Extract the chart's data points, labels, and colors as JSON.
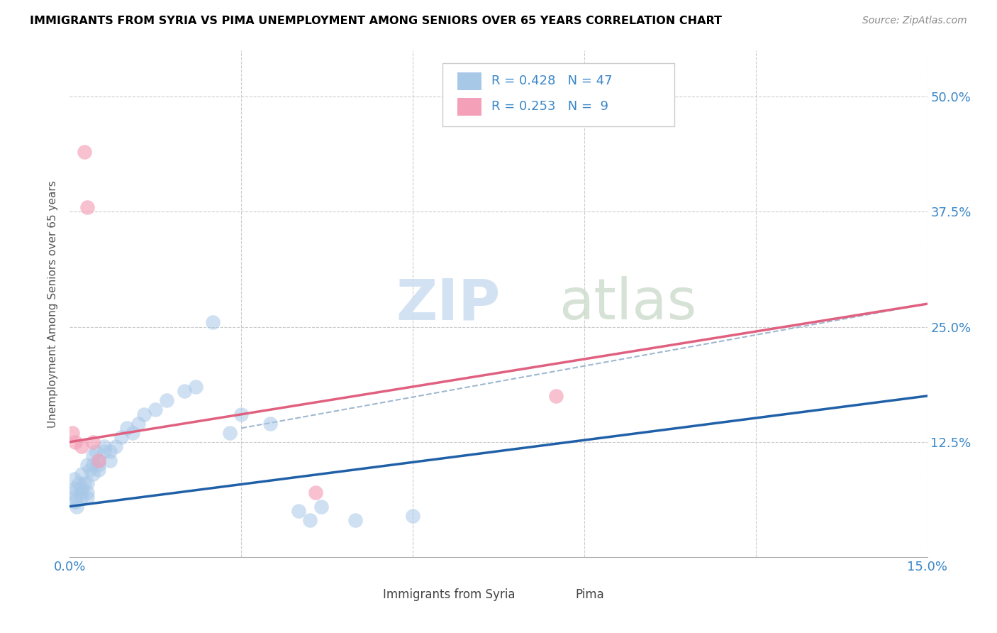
{
  "title": "IMMIGRANTS FROM SYRIA VS PIMA UNEMPLOYMENT AMONG SENIORS OVER 65 YEARS CORRELATION CHART",
  "source": "Source: ZipAtlas.com",
  "ylabel": "Unemployment Among Seniors over 65 years",
  "xlim": [
    0.0,
    0.15
  ],
  "ylim": [
    0.0,
    0.55
  ],
  "xticks": [
    0.0,
    0.03,
    0.06,
    0.09,
    0.12,
    0.15
  ],
  "xticklabels": [
    "0.0%",
    "",
    "",
    "",
    "",
    "15.0%"
  ],
  "yticks": [
    0.0,
    0.125,
    0.25,
    0.375,
    0.5
  ],
  "yticklabels": [
    "",
    "12.5%",
    "25.0%",
    "37.5%",
    "50.0%"
  ],
  "blue_color": "#a8c8e8",
  "pink_color": "#f4a0b8",
  "trendline_blue_color": "#2060a8",
  "trendline_pink_color": "#e06080",
  "trendline_dashed_color": "#a0b8d0",
  "blue_scatter": [
    [
      0.0005,
      0.07
    ],
    [
      0.0008,
      0.085
    ],
    [
      0.001,
      0.06
    ],
    [
      0.001,
      0.075
    ],
    [
      0.001,
      0.065
    ],
    [
      0.0012,
      0.055
    ],
    [
      0.0015,
      0.08
    ],
    [
      0.002,
      0.09
    ],
    [
      0.002,
      0.07
    ],
    [
      0.002,
      0.065
    ],
    [
      0.002,
      0.075
    ],
    [
      0.0025,
      0.08
    ],
    [
      0.003,
      0.07
    ],
    [
      0.003,
      0.08
    ],
    [
      0.003,
      0.065
    ],
    [
      0.003,
      0.1
    ],
    [
      0.0035,
      0.095
    ],
    [
      0.004,
      0.11
    ],
    [
      0.004,
      0.1
    ],
    [
      0.004,
      0.09
    ],
    [
      0.0045,
      0.115
    ],
    [
      0.005,
      0.105
    ],
    [
      0.005,
      0.1
    ],
    [
      0.005,
      0.095
    ],
    [
      0.006,
      0.12
    ],
    [
      0.006,
      0.115
    ],
    [
      0.007,
      0.115
    ],
    [
      0.007,
      0.105
    ],
    [
      0.008,
      0.12
    ],
    [
      0.009,
      0.13
    ],
    [
      0.01,
      0.14
    ],
    [
      0.011,
      0.135
    ],
    [
      0.012,
      0.145
    ],
    [
      0.013,
      0.155
    ],
    [
      0.015,
      0.16
    ],
    [
      0.017,
      0.17
    ],
    [
      0.02,
      0.18
    ],
    [
      0.022,
      0.185
    ],
    [
      0.025,
      0.255
    ],
    [
      0.028,
      0.135
    ],
    [
      0.03,
      0.155
    ],
    [
      0.035,
      0.145
    ],
    [
      0.04,
      0.05
    ],
    [
      0.042,
      0.04
    ],
    [
      0.044,
      0.055
    ],
    [
      0.05,
      0.04
    ],
    [
      0.06,
      0.045
    ]
  ],
  "pink_scatter": [
    [
      0.0005,
      0.135
    ],
    [
      0.001,
      0.125
    ],
    [
      0.002,
      0.12
    ],
    [
      0.0025,
      0.44
    ],
    [
      0.003,
      0.38
    ],
    [
      0.004,
      0.125
    ],
    [
      0.005,
      0.105
    ],
    [
      0.043,
      0.07
    ],
    [
      0.085,
      0.175
    ]
  ],
  "blue_trend_x": [
    0.0,
    0.15
  ],
  "blue_trend_y": [
    0.055,
    0.175
  ],
  "pink_trend_x": [
    0.0,
    0.15
  ],
  "pink_trend_y": [
    0.125,
    0.275
  ],
  "dashed_trend_x": [
    0.03,
    0.15
  ],
  "dashed_trend_y": [
    0.14,
    0.275
  ]
}
